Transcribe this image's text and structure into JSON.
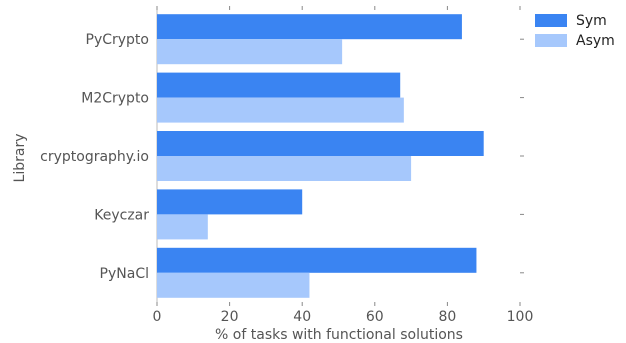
{
  "chart_data": {
    "type": "bar",
    "orientation": "horizontal",
    "categories": [
      "PyCrypto",
      "M2Crypto",
      "cryptography.io",
      "Keyczar",
      "PyNaCl"
    ],
    "series": [
      {
        "name": "Sym",
        "values": [
          84,
          67,
          90,
          40,
          88
        ]
      },
      {
        "name": "Asym",
        "values": [
          51,
          68,
          70,
          14,
          42
        ]
      }
    ],
    "title": "",
    "xlabel": "% of tasks with functional solutions",
    "ylabel": "Library",
    "xlim": [
      0,
      100
    ],
    "xticks": [
      0,
      20,
      40,
      60,
      80,
      100
    ],
    "grid": false,
    "legend_position": "top-right",
    "colors": {
      "Sym": "#3a84f2",
      "Asym": "#a6c8fc"
    }
  }
}
